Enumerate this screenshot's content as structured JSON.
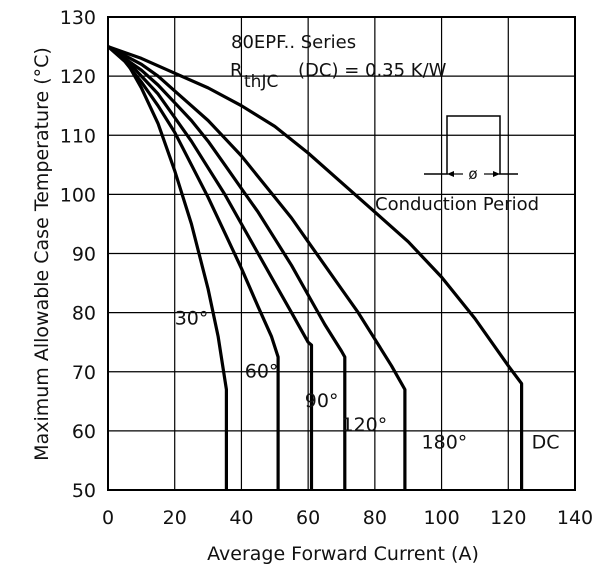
{
  "chart_data": {
    "type": "line",
    "title": "",
    "xlabel": "Average Forward Current (A)",
    "ylabel": "Maximum Allowable Case Temperature (°C)",
    "xlim": [
      0,
      140
    ],
    "ylim": [
      50,
      130
    ],
    "x_ticks": [
      "0",
      "20",
      "40",
      "60",
      "80",
      "100",
      "120",
      "140"
    ],
    "y_ticks": [
      "50",
      "60",
      "70",
      "80",
      "90",
      "100",
      "110",
      "120",
      "130"
    ],
    "grid": true,
    "series": [
      {
        "name": "30°",
        "label": "30°",
        "points": [
          [
            0,
            125
          ],
          [
            5,
            123
          ],
          [
            10,
            118
          ],
          [
            15,
            112
          ],
          [
            20,
            104
          ],
          [
            25,
            95
          ],
          [
            30,
            84
          ],
          [
            33,
            76
          ],
          [
            35.5,
            67
          ],
          [
            35.5,
            50
          ]
        ]
      },
      {
        "name": "60°",
        "label": "60°",
        "points": [
          [
            0,
            125
          ],
          [
            5,
            122.5
          ],
          [
            10,
            119
          ],
          [
            15,
            115
          ],
          [
            20,
            110.5
          ],
          [
            25,
            105
          ],
          [
            30,
            99.5
          ],
          [
            35,
            93.5
          ],
          [
            40,
            87.5
          ],
          [
            45,
            81
          ],
          [
            49,
            76
          ],
          [
            51,
            72.5
          ],
          [
            51,
            50
          ]
        ]
      },
      {
        "name": "90°",
        "label": "90°",
        "points": [
          [
            0,
            125
          ],
          [
            5,
            123
          ],
          [
            10,
            120
          ],
          [
            15,
            117
          ],
          [
            20,
            113
          ],
          [
            25,
            109
          ],
          [
            30,
            104.5
          ],
          [
            35,
            100
          ],
          [
            40,
            95
          ],
          [
            45,
            90
          ],
          [
            50,
            85
          ],
          [
            55,
            80
          ],
          [
            60,
            75
          ],
          [
            61,
            74.5
          ],
          [
            61,
            50
          ]
        ]
      },
      {
        "name": "120°",
        "label": "120°",
        "points": [
          [
            0,
            125
          ],
          [
            5,
            123
          ],
          [
            10,
            121
          ],
          [
            15,
            118.5
          ],
          [
            20,
            115.5
          ],
          [
            25,
            112.5
          ],
          [
            30,
            109
          ],
          [
            35,
            105
          ],
          [
            40,
            101
          ],
          [
            45,
            97
          ],
          [
            50,
            92.5
          ],
          [
            55,
            88
          ],
          [
            60,
            83
          ],
          [
            65,
            78
          ],
          [
            70,
            73.5
          ],
          [
            71,
            72.5
          ],
          [
            71,
            50
          ]
        ]
      },
      {
        "name": "180°",
        "label": "180°",
        "points": [
          [
            0,
            125
          ],
          [
            5,
            123.5
          ],
          [
            10,
            122
          ],
          [
            15,
            120
          ],
          [
            20,
            117.5
          ],
          [
            25,
            115
          ],
          [
            30,
            112.5
          ],
          [
            35,
            109.5
          ],
          [
            40,
            106.5
          ],
          [
            45,
            103
          ],
          [
            50,
            99.5
          ],
          [
            55,
            96
          ],
          [
            60,
            92
          ],
          [
            65,
            88
          ],
          [
            70,
            84
          ],
          [
            75,
            80
          ],
          [
            80,
            75.5
          ],
          [
            85,
            71
          ],
          [
            89,
            67
          ],
          [
            89,
            50
          ]
        ]
      },
      {
        "name": "DC",
        "label": "DC",
        "points": [
          [
            0,
            125
          ],
          [
            10,
            123
          ],
          [
            20,
            120.5
          ],
          [
            30,
            118
          ],
          [
            40,
            115
          ],
          [
            50,
            111.5
          ],
          [
            60,
            107
          ],
          [
            70,
            102
          ],
          [
            80,
            97
          ],
          [
            90,
            92
          ],
          [
            100,
            86
          ],
          [
            110,
            79
          ],
          [
            120,
            71
          ],
          [
            124,
            68
          ],
          [
            124,
            50
          ]
        ]
      }
    ],
    "annotations": {
      "series_title": "80EPF.. Series",
      "rthjc_R": "R",
      "rthjc_sub": "thJC",
      "rthjc_rest": "(DC) = 0.35 K/W",
      "phi_symbol": "ø",
      "conduction_label": "Conduction Period"
    }
  }
}
